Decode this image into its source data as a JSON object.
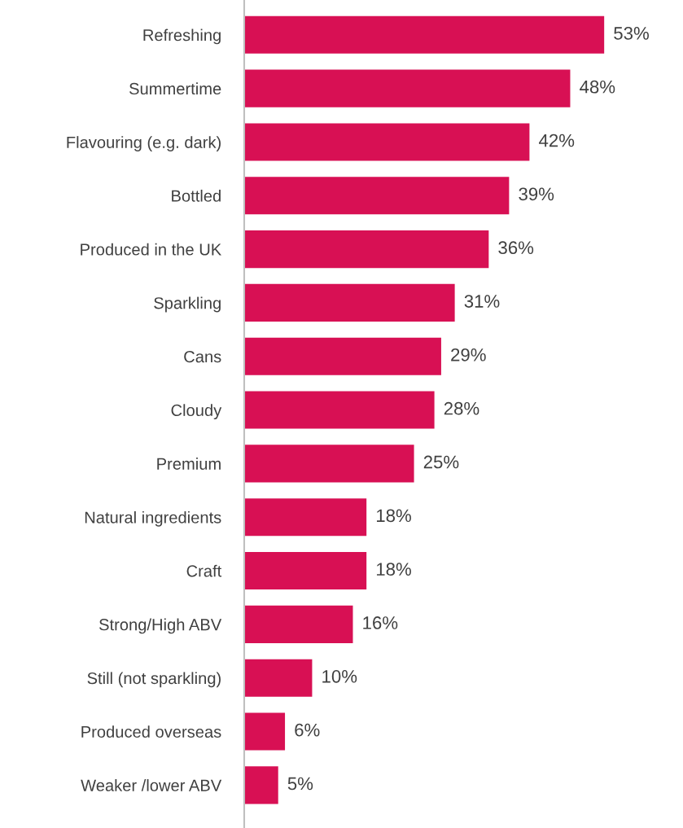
{
  "chart_data": {
    "type": "bar",
    "orientation": "horizontal",
    "categories": [
      "Refreshing",
      "Summertime",
      "Flavouring (e.g. dark)",
      "Bottled",
      "Produced in the UK",
      "Sparkling",
      "Cans",
      "Cloudy",
      "Premium",
      "Natural ingredients",
      "Craft",
      "Strong/High ABV",
      "Still (not sparkling)",
      "Produced overseas",
      "Weaker /lower ABV"
    ],
    "values": [
      53,
      48,
      42,
      39,
      36,
      31,
      29,
      28,
      25,
      18,
      18,
      16,
      10,
      6,
      5
    ],
    "value_labels": [
      "53%",
      "48%",
      "42%",
      "39%",
      "36%",
      "31%",
      "29%",
      "28%",
      "25%",
      "18%",
      "18%",
      "16%",
      "10%",
      "6%",
      "5%"
    ],
    "color": "#d81054"
  }
}
